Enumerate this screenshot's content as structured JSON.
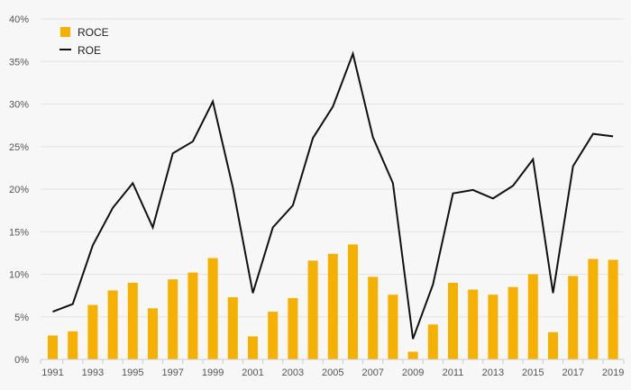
{
  "chart_data": {
    "type": "bar",
    "x": [
      1991,
      1992,
      1993,
      1994,
      1995,
      1996,
      1997,
      1998,
      1999,
      2000,
      2001,
      2002,
      2003,
      2004,
      2005,
      2006,
      2007,
      2008,
      2009,
      2010,
      2011,
      2012,
      2013,
      2014,
      2015,
      2016,
      2017,
      2018,
      2019
    ],
    "x_tick_labels": [
      "1991",
      "1993",
      "1995",
      "1997",
      "1999",
      "2001",
      "2003",
      "2005",
      "2007",
      "2009",
      "2011",
      "2013",
      "2015",
      "2017",
      "2019"
    ],
    "y_tick_labels": [
      "0%",
      "5%",
      "10%",
      "15%",
      "20%",
      "25%",
      "30%",
      "35%",
      "40%"
    ],
    "ylim": [
      0,
      40
    ],
    "grid": true,
    "legend_position": "top-left",
    "series": [
      {
        "name": "ROCE",
        "type": "bar",
        "color": "#f5b000",
        "values": [
          2.8,
          3.3,
          6.4,
          8.1,
          9.0,
          6.0,
          9.4,
          10.2,
          11.9,
          7.3,
          2.7,
          5.6,
          7.2,
          11.6,
          12.4,
          13.5,
          9.7,
          7.6,
          0.9,
          4.1,
          9.0,
          8.2,
          7.6,
          8.5,
          10.0,
          3.2,
          9.8,
          11.8,
          11.7
        ]
      },
      {
        "name": "ROE",
        "type": "line",
        "color": "#111111",
        "values": [
          5.6,
          6.5,
          13.4,
          17.8,
          20.7,
          15.5,
          24.2,
          25.6,
          30.3,
          20.2,
          7.8,
          15.5,
          18.1,
          26.0,
          29.7,
          35.9,
          26.1,
          20.7,
          2.4,
          8.8,
          19.5,
          19.9,
          18.9,
          20.4,
          23.5,
          7.8,
          22.7,
          26.5,
          26.2
        ]
      }
    ]
  },
  "colors": {
    "grid": "#e3e3e3",
    "axis": "#cccccc",
    "background": "#f7f7f7"
  }
}
